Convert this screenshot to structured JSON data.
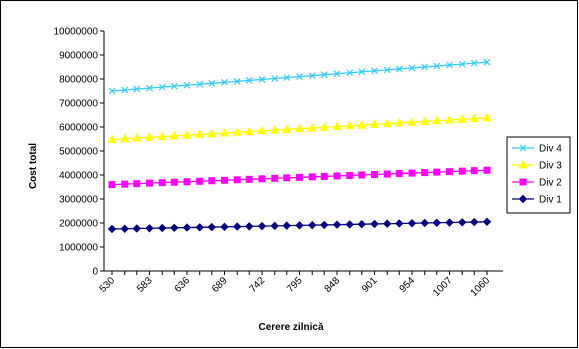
{
  "chart_data": {
    "type": "line",
    "title": "",
    "xlabel": "Cerere zilnică",
    "ylabel": "Cost total",
    "ylim": [
      0,
      10000000
    ],
    "yticks": [
      0,
      1000000,
      2000000,
      3000000,
      4000000,
      5000000,
      6000000,
      7000000,
      8000000,
      9000000,
      10000000
    ],
    "xtick_labels": [
      "530",
      "583",
      "636",
      "689",
      "742",
      "795",
      "848",
      "901",
      "954",
      "1007",
      "1060"
    ],
    "x": [
      530,
      548,
      565,
      583,
      601,
      618,
      636,
      654,
      671,
      689,
      707,
      724,
      742,
      760,
      777,
      795,
      813,
      830,
      848,
      866,
      883,
      901,
      919,
      936,
      954,
      972,
      989,
      1007,
      1025,
      1042,
      1060
    ],
    "grid": false,
    "legend_position": "right",
    "series": [
      {
        "name": "Div 4",
        "color": "#33ccff",
        "marker": "x",
        "values": [
          7500000,
          7540000,
          7580000,
          7620000,
          7660000,
          7700000,
          7740000,
          7780000,
          7820000,
          7860000,
          7900000,
          7940000,
          7980000,
          8020000,
          8060000,
          8100000,
          8140000,
          8180000,
          8220000,
          8260000,
          8300000,
          8340000,
          8380000,
          8420000,
          8460000,
          8500000,
          8540000,
          8580000,
          8620000,
          8660000,
          8700000
        ]
      },
      {
        "name": "Div 3",
        "color": "#ffff00",
        "marker": "triangle",
        "values": [
          5480000,
          5510000,
          5540000,
          5570000,
          5600000,
          5630000,
          5660000,
          5690000,
          5720000,
          5750000,
          5780000,
          5810000,
          5840000,
          5870000,
          5900000,
          5930000,
          5960000,
          5990000,
          6020000,
          6050000,
          6080000,
          6110000,
          6140000,
          6170000,
          6200000,
          6230000,
          6260000,
          6290000,
          6320000,
          6350000,
          6380000
        ]
      },
      {
        "name": "Div 2",
        "color": "#ff00ff",
        "marker": "square",
        "values": [
          3600000,
          3620000,
          3640000,
          3660000,
          3680000,
          3700000,
          3720000,
          3740000,
          3760000,
          3780000,
          3800000,
          3820000,
          3840000,
          3860000,
          3880000,
          3900000,
          3920000,
          3940000,
          3960000,
          3980000,
          4000000,
          4020000,
          4040000,
          4060000,
          4080000,
          4100000,
          4120000,
          4140000,
          4160000,
          4180000,
          4200000
        ]
      },
      {
        "name": "Div 1",
        "color": "#000080",
        "marker": "diamond",
        "values": [
          1750000,
          1760000,
          1770000,
          1780000,
          1790000,
          1800000,
          1810000,
          1820000,
          1830000,
          1840000,
          1850000,
          1860000,
          1870000,
          1880000,
          1890000,
          1900000,
          1910000,
          1920000,
          1930000,
          1940000,
          1950000,
          1960000,
          1970000,
          1980000,
          1990000,
          2000000,
          2010000,
          2020000,
          2030000,
          2040000,
          2050000
        ]
      }
    ]
  }
}
